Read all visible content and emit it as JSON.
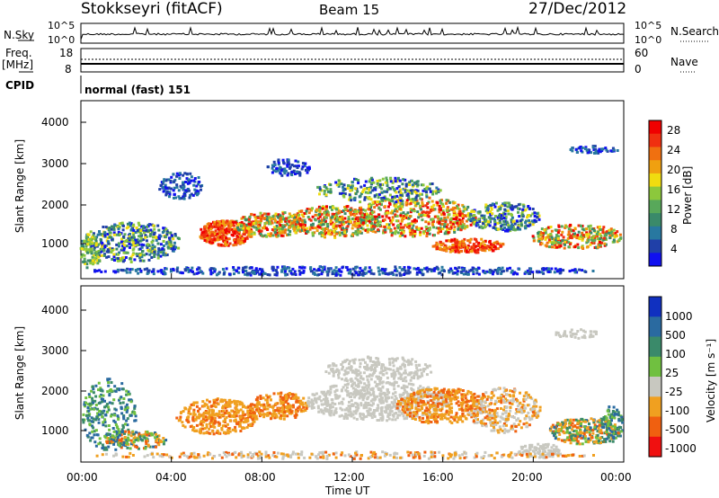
{
  "header": {
    "station": "Stokkseyri (fitACF)",
    "beam": "Beam 15",
    "date": "27/Dec/2012"
  },
  "left_labels": {
    "nsky": "N.Sky",
    "freq": "Freq.",
    "mhz": "[MHz]",
    "cpid": "CPID"
  },
  "right_labels": {
    "nsearch": "N.Search",
    "nave": "Nave"
  },
  "cpid_text": "normal (fast) 151",
  "noise_axis": {
    "top": "10^5",
    "bottom": "10^0"
  },
  "freq_axis": {
    "top": "18",
    "bottom": "8"
  },
  "nave_axis": {
    "top": "60",
    "bottom": "0"
  },
  "chart_data": [
    {
      "type": "line",
      "title": "",
      "ylabel": "N.Sky",
      "ylim": [
        "10^0",
        "10^5"
      ],
      "note": "noise level, mostly flat near baseline with spikes"
    },
    {
      "type": "line",
      "ylabel": "Freq. [MHz]",
      "ylim": [
        8,
        18
      ],
      "y2label": "Nave",
      "y2lim": [
        0,
        60
      ]
    },
    {
      "type": "heatmap",
      "ylabel": "Slant Range [km]",
      "xlabel": "",
      "yticks": [
        1000,
        2000,
        3000,
        4000
      ],
      "colorbar": {
        "label": "Power [dB]",
        "ticks": [
          "4",
          "8",
          "12",
          "16",
          "20",
          "24",
          "28"
        ],
        "colors": [
          "#1010f0",
          "#2040a8",
          "#2878a0",
          "#3a8a6a",
          "#58a85a",
          "#8cc83c",
          "#f0dc10",
          "#f0a010",
          "#f07010",
          "#f03010",
          "#f00000"
        ]
      }
    },
    {
      "type": "heatmap",
      "ylabel": "Slant Range [km]",
      "xlabel": "Time UT",
      "yticks": [
        1000,
        2000,
        3000,
        4000
      ],
      "xticks": [
        "00:00",
        "04:00",
        "08:00",
        "12:00",
        "16:00",
        "20:00",
        "00:00"
      ],
      "colorbar": {
        "label": "Velocity [m s^-1]",
        "ticks": [
          "1000",
          "500",
          "100",
          "25",
          "-25",
          "-100",
          "-500",
          "-1000"
        ],
        "colors": [
          "#1030c0",
          "#2a6aa0",
          "#3a8a6a",
          "#70c040",
          "#c8c8c0",
          "#f0a020",
          "#f06010",
          "#f01010"
        ]
      }
    }
  ],
  "power_label": "Power [dB]",
  "velocity_label": "Velocity [m s⁻¹]",
  "y_axis_label": "Slant Range [km]",
  "x_axis_label": "Time UT",
  "x_ticks": [
    "00:00",
    "04:00",
    "08:00",
    "12:00",
    "16:00",
    "20:00",
    "00:00"
  ],
  "y_ticks": [
    "1000",
    "2000",
    "3000",
    "4000"
  ],
  "power_ticks": [
    "28",
    "24",
    "20",
    "16",
    "12",
    "8",
    "4"
  ],
  "velocity_ticks": [
    "1000",
    "500",
    "100",
    "25",
    "-25",
    "-100",
    "-500",
    "-1000"
  ]
}
